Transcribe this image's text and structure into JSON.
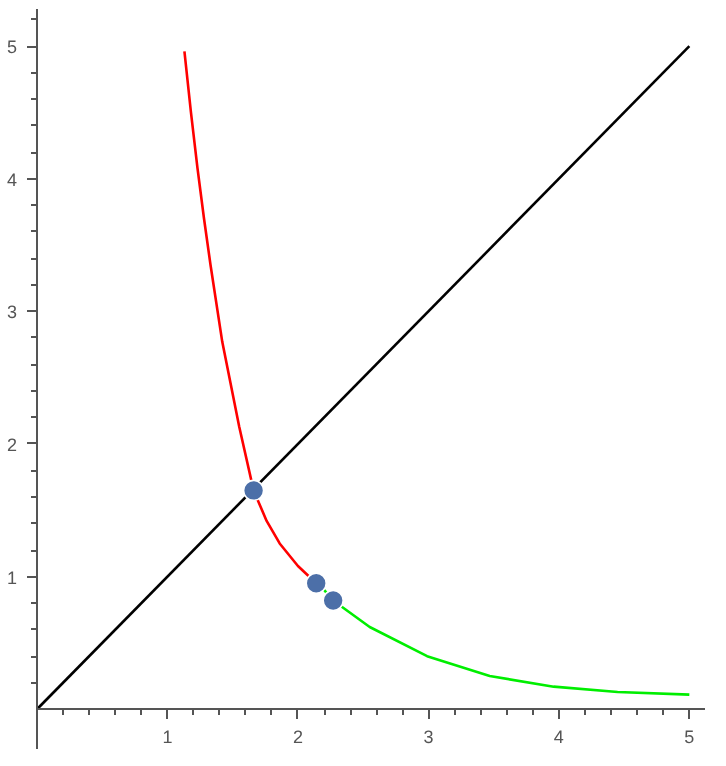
{
  "chart_data": {
    "type": "line",
    "xlim": [
      0,
      5.12
    ],
    "ylim": [
      -0.3,
      5.28
    ],
    "xticks": [
      1,
      2,
      3,
      4,
      5
    ],
    "yticks": [
      1,
      2,
      3,
      4,
      5
    ],
    "grid": false,
    "series": [
      {
        "color": "#000000",
        "x": [
          0,
          5
        ],
        "values": [
          0,
          5
        ]
      },
      {
        "color": "#ff0000",
        "x": [
          1.13,
          1.18,
          1.23,
          1.28,
          1.33,
          1.42,
          1.55,
          1.66,
          1.76,
          1.86,
          2.0,
          2.14,
          2.2
        ],
        "values": [
          4.96,
          4.5,
          4.08,
          3.7,
          3.35,
          2.77,
          2.13,
          1.65,
          1.42,
          1.25,
          1.08,
          0.95,
          0.9
        ]
      },
      {
        "color": "#00ee00",
        "x": [
          2.2,
          2.27,
          2.55,
          2.99,
          3.47,
          3.96,
          4.45,
          5.0
        ],
        "values": [
          0.9,
          0.82,
          0.62,
          0.4,
          0.25,
          0.17,
          0.13,
          0.11
        ]
      },
      {
        "type": "scatter",
        "color": "#4c6fa8",
        "marker": "circle",
        "x": [
          1.66,
          2.14,
          2.27
        ],
        "values": [
          1.65,
          0.95,
          0.82
        ]
      }
    ]
  }
}
